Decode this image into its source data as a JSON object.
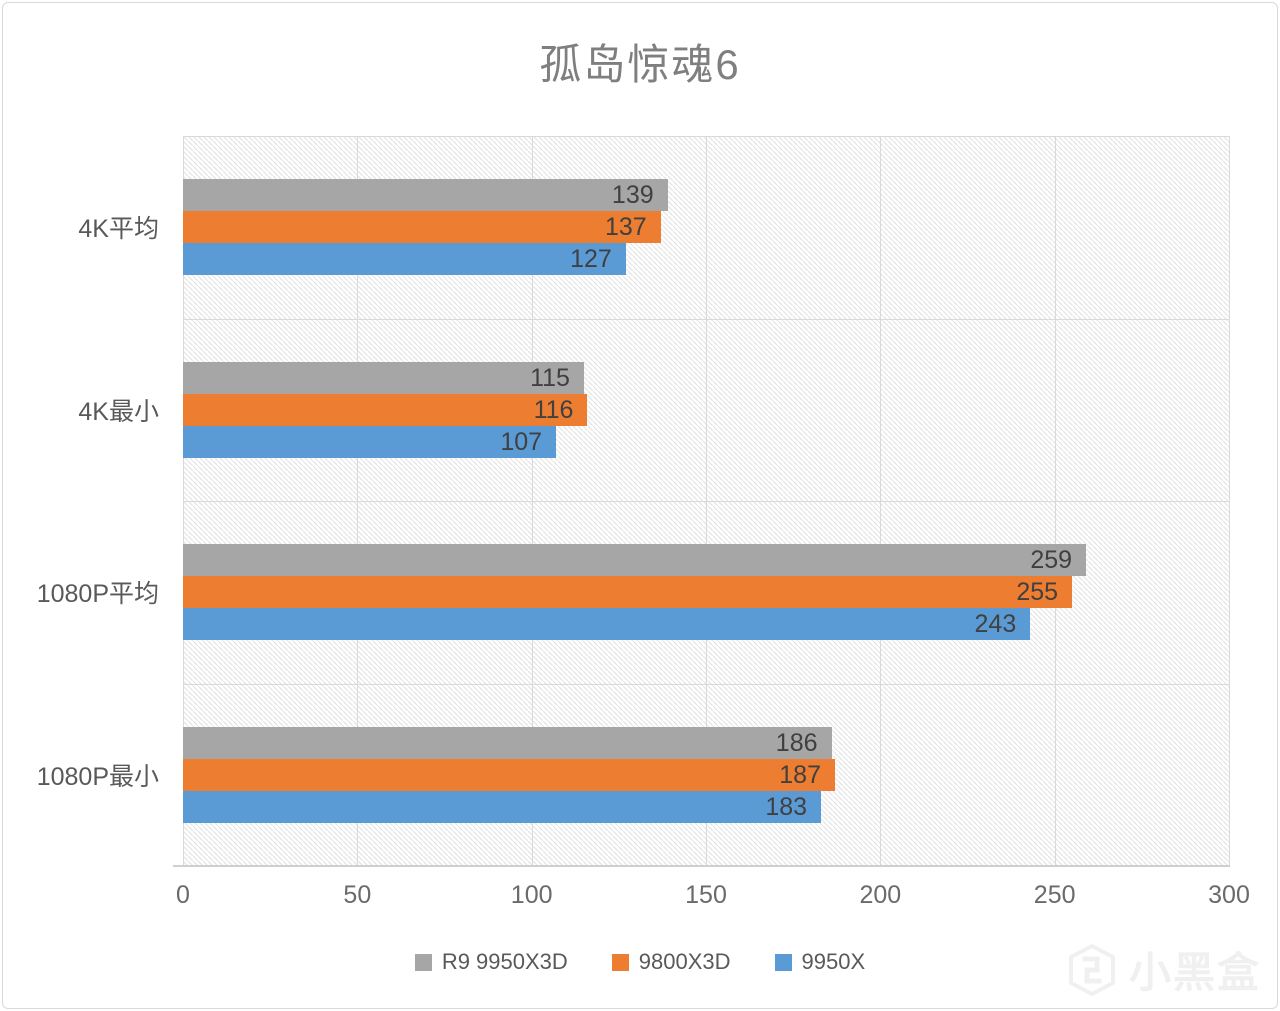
{
  "title": "孤岛惊魂6",
  "chart_data": {
    "type": "bar",
    "orientation": "horizontal",
    "categories": [
      "4K平均",
      "4K最小",
      "1080P平均",
      "1080P最小"
    ],
    "series": [
      {
        "name": "R9 9950X3D",
        "color": "#A6A6A6",
        "values": [
          139,
          115,
          259,
          186
        ]
      },
      {
        "name": "9800X3D",
        "color": "#ED7D31",
        "values": [
          137,
          116,
          255,
          187
        ]
      },
      {
        "name": "9950X",
        "color": "#5B9BD5",
        "values": [
          127,
          107,
          243,
          183
        ]
      }
    ],
    "xlabel": "",
    "ylabel": "",
    "xlim": [
      0,
      300
    ],
    "x_ticks": [
      0,
      50,
      100,
      150,
      200,
      250,
      300
    ],
    "grid": true,
    "plot_background": "diagonal-hatch",
    "data_labels": "inside-end",
    "legend_position": "bottom"
  },
  "colors": {
    "title_text": "#7f7f7f",
    "axis_text": "#6a6a6a",
    "category_text": "#595959",
    "value_label_text": "#404040",
    "gridline": "#d9d9d9",
    "hatch_line": "#e4e4e4",
    "card_border": "#d9d9d9",
    "watermark": "#f0f0f0"
  },
  "watermark": {
    "text": "小黑盒",
    "icon": "heybox-logo-icon"
  }
}
